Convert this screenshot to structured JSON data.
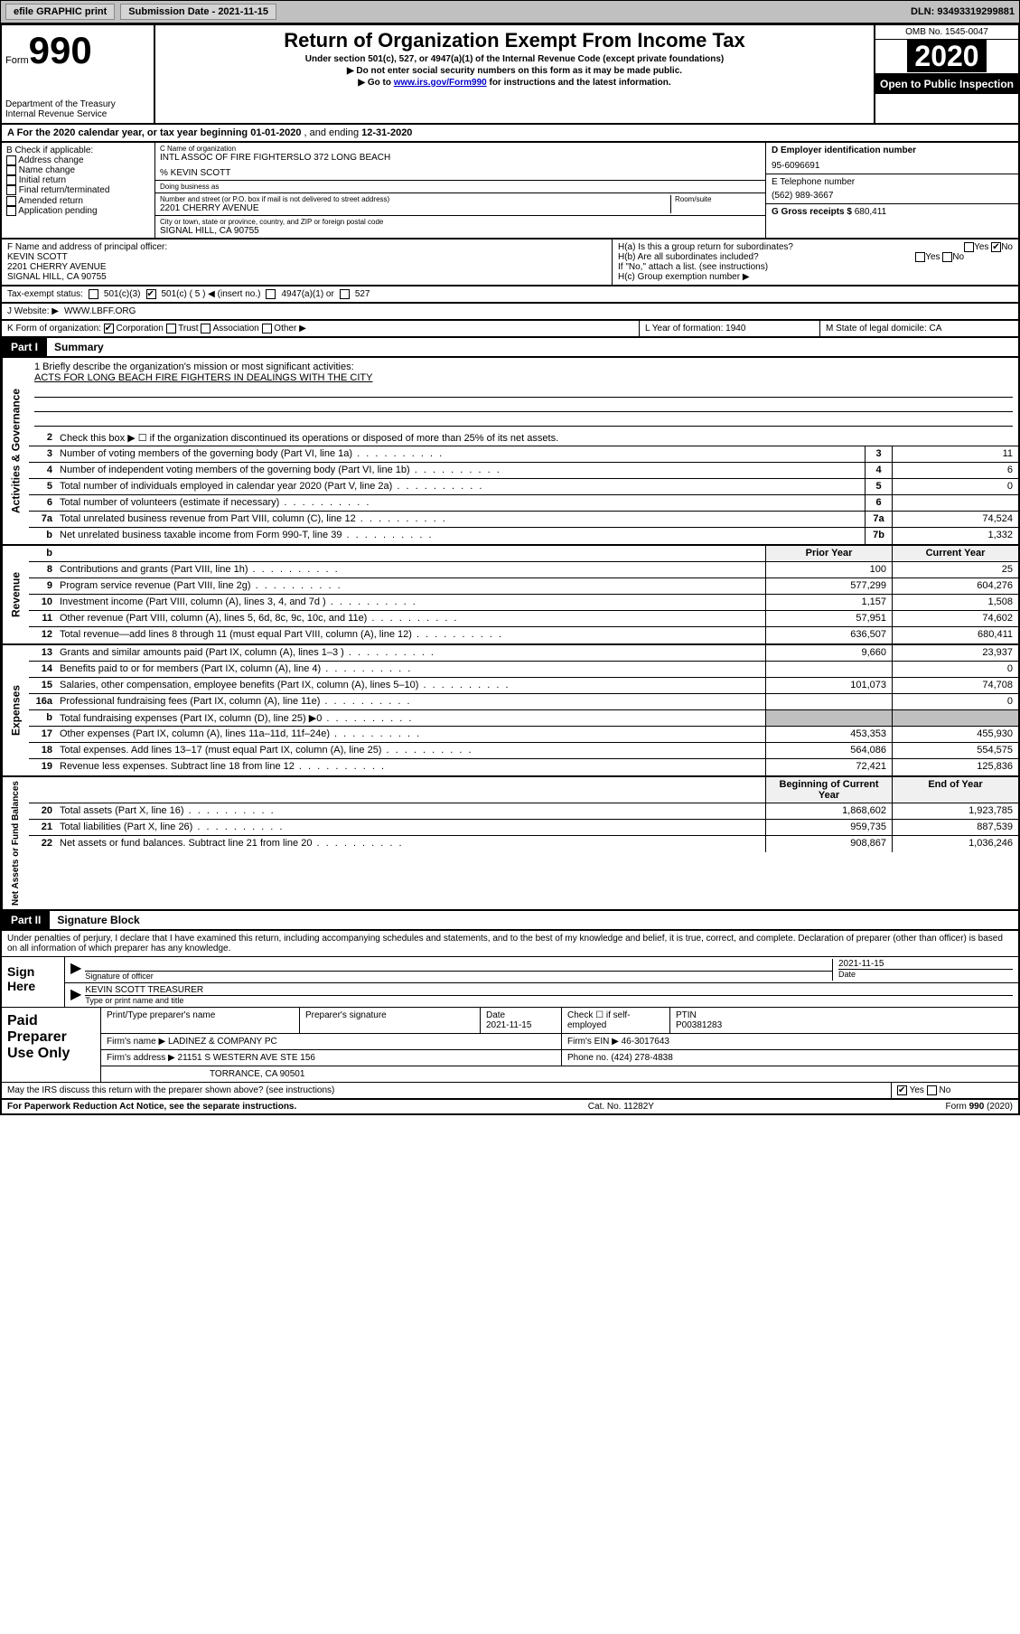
{
  "top": {
    "efile": "efile GRAPHIC print",
    "submission_label": "Submission Date - 2021-11-15",
    "dln": "DLN: 93493319299881"
  },
  "header": {
    "form_word": "Form",
    "form_num": "990",
    "dept": "Department of the Treasury\nInternal Revenue Service",
    "title": "Return of Organization Exempt From Income Tax",
    "subtitle": "Under section 501(c), 527, or 4947(a)(1) of the Internal Revenue Code (except private foundations)",
    "note1": "▶ Do not enter social security numbers on this form as it may be made public.",
    "note2_pre": "▶ Go to ",
    "note2_link": "www.irs.gov/Form990",
    "note2_post": " for instructions and the latest information.",
    "omb": "OMB No. 1545-0047",
    "year": "2020",
    "open": "Open to Public Inspection"
  },
  "line_a": {
    "text_pre": "A For the 2020 calendar year, or tax year beginning ",
    "begin": "01-01-2020",
    "mid": " , and ending ",
    "end": "12-31-2020"
  },
  "box_b": {
    "label": "B Check if applicable:",
    "items": [
      "Address change",
      "Name change",
      "Initial return",
      "Final return/terminated",
      "Amended return",
      "Application pending"
    ]
  },
  "box_c": {
    "name_lbl": "C Name of organization",
    "name": "INTL ASSOC OF FIRE FIGHTERSLO 372 LONG BEACH",
    "care_of": "% KEVIN SCOTT",
    "dba_lbl": "Doing business as",
    "addr_lbl": "Number and street (or P.O. box if mail is not delivered to street address)",
    "room_lbl": "Room/suite",
    "addr": "2201 CHERRY AVENUE",
    "city_lbl": "City or town, state or province, country, and ZIP or foreign postal code",
    "city": "SIGNAL HILL, CA  90755"
  },
  "box_d": {
    "ein_lbl": "D Employer identification number",
    "ein": "95-6096691",
    "phone_lbl": "E Telephone number",
    "phone": "(562) 989-3667",
    "gross_lbl": "G Gross receipts $ ",
    "gross": "680,411"
  },
  "box_f": {
    "lbl": "F Name and address of principal officer:",
    "name": "KEVIN SCOTT",
    "addr1": "2201 CHERRY AVENUE",
    "addr2": "SIGNAL HILL, CA  90755"
  },
  "box_h": {
    "ha": "H(a)  Is this a group return for subordinates?",
    "ha_yes": "Yes",
    "ha_no": "No",
    "hb": "H(b)  Are all subordinates included?",
    "hb_note": "If \"No,\" attach a list. (see instructions)",
    "hc": "H(c)  Group exemption number ▶"
  },
  "tax_status": {
    "lbl": "Tax-exempt status:",
    "c3": "501(c)(3)",
    "c": "501(c) ( 5 ) ◀ (insert no.)",
    "a1": "4947(a)(1) or",
    "527": "527"
  },
  "website": {
    "lbl": "J  Website: ▶",
    "val": "WWW.LBFF.ORG"
  },
  "line_k": {
    "lbl": "K Form of organization:",
    "corp": "Corporation",
    "trust": "Trust",
    "assoc": "Association",
    "other": "Other ▶"
  },
  "line_l": {
    "lbl": "L Year of formation: ",
    "val": "1940"
  },
  "line_m": {
    "lbl": "M State of legal domicile: ",
    "val": "CA"
  },
  "part1": {
    "num": "Part I",
    "title": "Summary"
  },
  "summary": {
    "q1": "1  Briefly describe the organization's mission or most significant activities:",
    "q1_ans": "ACTS FOR LONG BEACH FIRE FIGHTERS IN DEALINGS WITH THE CITY",
    "q2": "Check this box ▶ ☐  if the organization discontinued its operations or disposed of more than 25% of its net assets.",
    "rows_gov": [
      {
        "n": "3",
        "d": "Number of voting members of the governing body (Part VI, line 1a)",
        "b": "3",
        "v": "11"
      },
      {
        "n": "4",
        "d": "Number of independent voting members of the governing body (Part VI, line 1b)",
        "b": "4",
        "v": "6"
      },
      {
        "n": "5",
        "d": "Total number of individuals employed in calendar year 2020 (Part V, line 2a)",
        "b": "5",
        "v": "0"
      },
      {
        "n": "6",
        "d": "Total number of volunteers (estimate if necessary)",
        "b": "6",
        "v": ""
      },
      {
        "n": "7a",
        "d": "Total unrelated business revenue from Part VIII, column (C), line 12",
        "b": "7a",
        "v": "74,524"
      },
      {
        "n": "b",
        "d": "Net unrelated business taxable income from Form 990-T, line 39",
        "b": "7b",
        "v": "1,332"
      }
    ],
    "hdr_prior": "Prior Year",
    "hdr_curr": "Current Year",
    "rows_rev": [
      {
        "n": "8",
        "d": "Contributions and grants (Part VIII, line 1h)",
        "p": "100",
        "c": "25"
      },
      {
        "n": "9",
        "d": "Program service revenue (Part VIII, line 2g)",
        "p": "577,299",
        "c": "604,276"
      },
      {
        "n": "10",
        "d": "Investment income (Part VIII, column (A), lines 3, 4, and 7d )",
        "p": "1,157",
        "c": "1,508"
      },
      {
        "n": "11",
        "d": "Other revenue (Part VIII, column (A), lines 5, 6d, 8c, 9c, 10c, and 11e)",
        "p": "57,951",
        "c": "74,602"
      },
      {
        "n": "12",
        "d": "Total revenue—add lines 8 through 11 (must equal Part VIII, column (A), line 12)",
        "p": "636,507",
        "c": "680,411"
      }
    ],
    "rows_exp": [
      {
        "n": "13",
        "d": "Grants and similar amounts paid (Part IX, column (A), lines 1–3 )",
        "p": "9,660",
        "c": "23,937"
      },
      {
        "n": "14",
        "d": "Benefits paid to or for members (Part IX, column (A), line 4)",
        "p": "",
        "c": "0"
      },
      {
        "n": "15",
        "d": "Salaries, other compensation, employee benefits (Part IX, column (A), lines 5–10)",
        "p": "101,073",
        "c": "74,708"
      },
      {
        "n": "16a",
        "d": "Professional fundraising fees (Part IX, column (A), line 11e)",
        "p": "",
        "c": "0"
      },
      {
        "n": "b",
        "d": "Total fundraising expenses (Part IX, column (D), line 25) ▶0",
        "p": "GRAY",
        "c": "GRAY"
      },
      {
        "n": "17",
        "d": "Other expenses (Part IX, column (A), lines 11a–11d, 11f–24e)",
        "p": "453,353",
        "c": "455,930"
      },
      {
        "n": "18",
        "d": "Total expenses. Add lines 13–17 (must equal Part IX, column (A), line 25)",
        "p": "564,086",
        "c": "554,575"
      },
      {
        "n": "19",
        "d": "Revenue less expenses. Subtract line 18 from line 12",
        "p": "72,421",
        "c": "125,836"
      }
    ],
    "hdr_beg": "Beginning of Current Year",
    "hdr_end": "End of Year",
    "rows_net": [
      {
        "n": "20",
        "d": "Total assets (Part X, line 16)",
        "p": "1,868,602",
        "c": "1,923,785"
      },
      {
        "n": "21",
        "d": "Total liabilities (Part X, line 26)",
        "p": "959,735",
        "c": "887,539"
      },
      {
        "n": "22",
        "d": "Net assets or fund balances. Subtract line 21 from line 20",
        "p": "908,867",
        "c": "1,036,246"
      }
    ],
    "side_gov": "Activities & Governance",
    "side_rev": "Revenue",
    "side_exp": "Expenses",
    "side_net": "Net Assets or Fund Balances"
  },
  "part2": {
    "num": "Part II",
    "title": "Signature Block"
  },
  "sig": {
    "declaration": "Under penalties of perjury, I declare that I have examined this return, including accompanying schedules and statements, and to the best of my knowledge and belief, it is true, correct, and complete. Declaration of preparer (other than officer) is based on all information of which preparer has any knowledge.",
    "sign_here": "Sign Here",
    "sig_officer": "Signature of officer",
    "sig_date": "2021-11-15",
    "date_lbl": "Date",
    "name_title": "KEVIN SCOTT  TREASURER",
    "type_lbl": "Type or print name and title"
  },
  "paid": {
    "lbl": "Paid Preparer Use Only",
    "h1": "Print/Type preparer's name",
    "h2": "Preparer's signature",
    "h3": "Date",
    "h3v": "2021-11-15",
    "h4": "Check ☐ if self-employed",
    "h5": "PTIN",
    "h5v": "P00381283",
    "firm_lbl": "Firm's name    ▶",
    "firm": "LADINEZ & COMPANY PC",
    "ein_lbl": "Firm's EIN ▶",
    "ein": "46-3017643",
    "addr_lbl": "Firm's address ▶",
    "addr1": "21151 S WESTERN AVE STE 156",
    "addr2": "TORRANCE, CA  90501",
    "phone_lbl": "Phone no. ",
    "phone": "(424) 278-4838",
    "discuss": "May the IRS discuss this return with the preparer shown above? (see instructions)",
    "yes": "Yes",
    "no": "No"
  },
  "footer": {
    "left": "For Paperwork Reduction Act Notice, see the separate instructions.",
    "mid": "Cat. No. 11282Y",
    "right": "Form 990 (2020)"
  },
  "colors": {
    "link": "#0000cc",
    "gray_bg": "#c0c0c0",
    "black": "#000000"
  }
}
